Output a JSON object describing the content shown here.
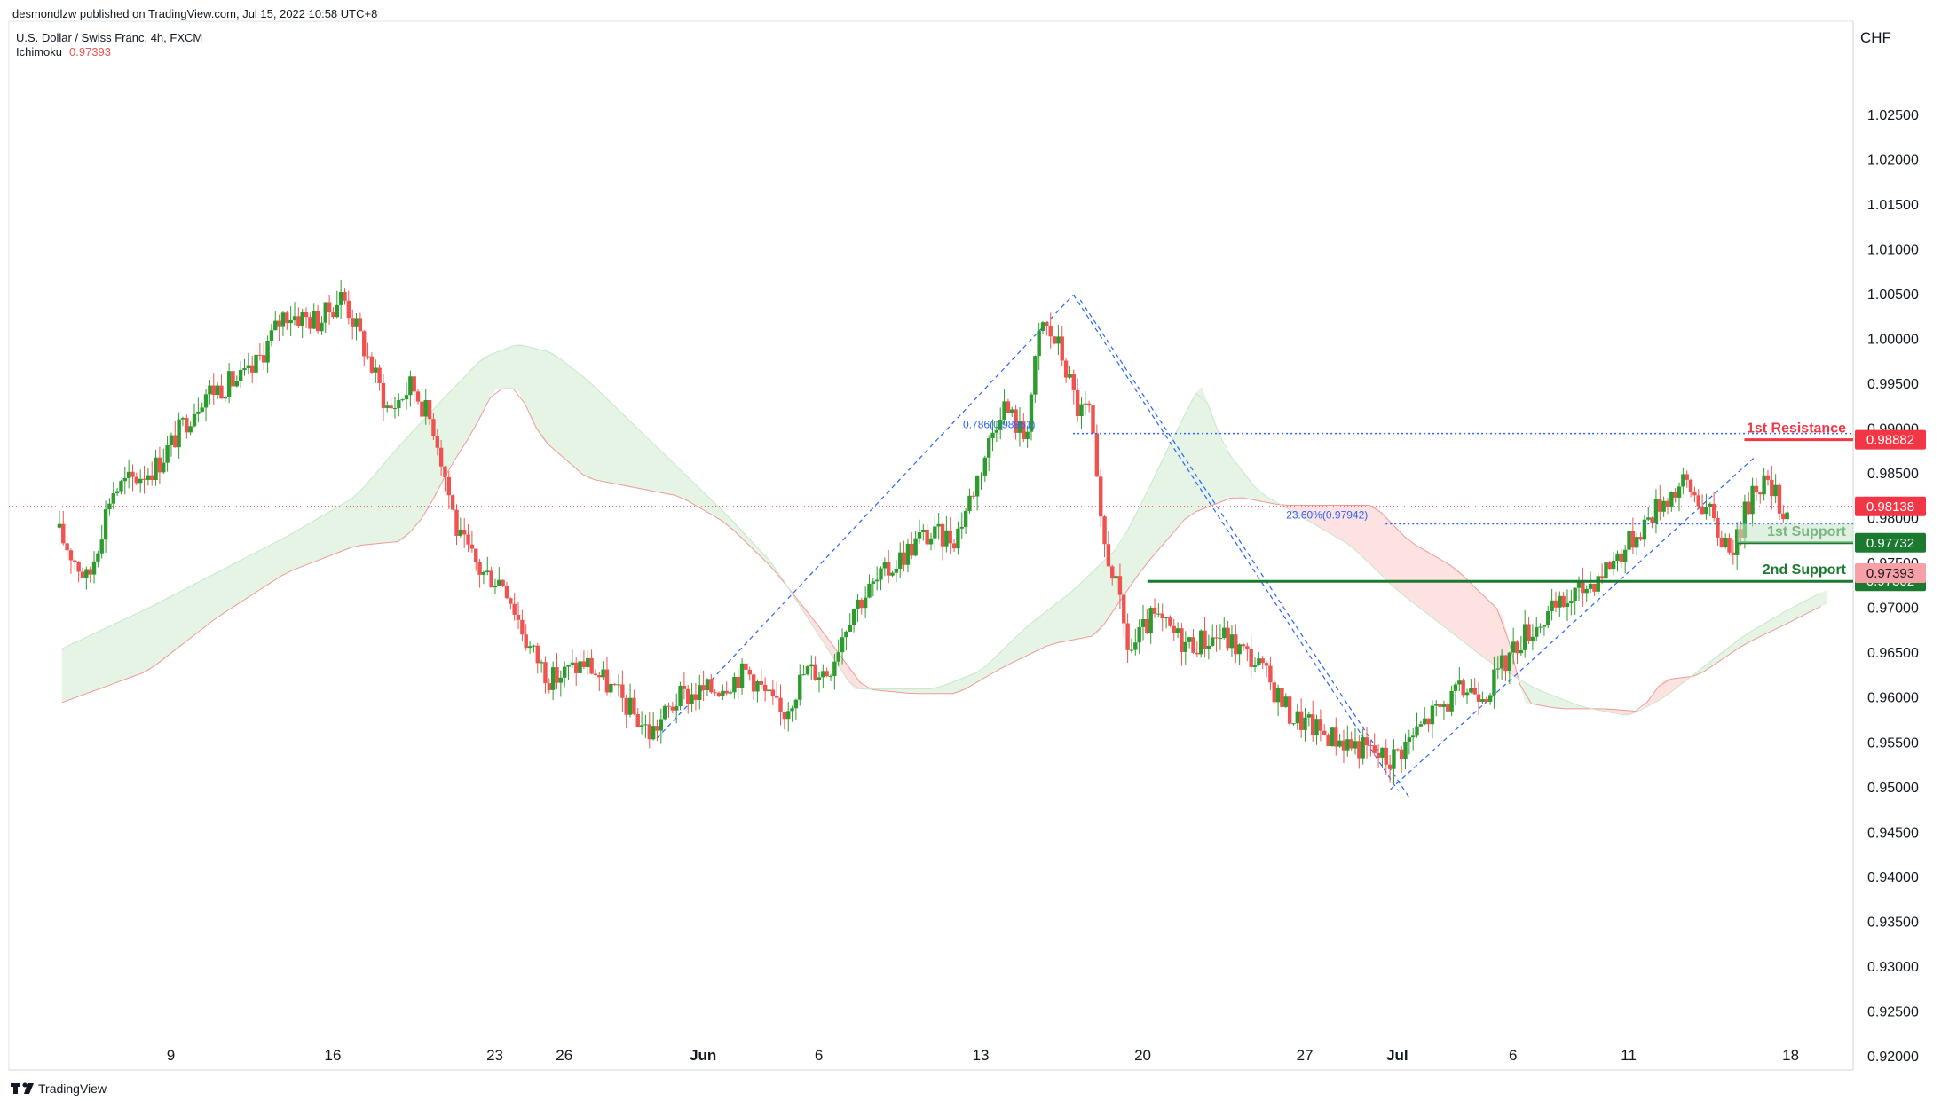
{
  "header": {
    "publisher": "desmondlzw published on TradingView.com, Jul 15, 2022 10:58 UTC+8",
    "symbol": "U.S. Dollar / Swiss Franc, 4h, FXCM",
    "indicator_name": "Ichimoku",
    "indicator_value": "0.97393"
  },
  "footer": {
    "brand": "TradingView"
  },
  "chart_data": {
    "type": "candlestick",
    "currency": "CHF",
    "ylim": [
      0.9185,
      1.0355
    ],
    "y_ticks": [
      "0.92000",
      "0.92500",
      "0.93000",
      "0.93500",
      "0.94000",
      "0.94500",
      "0.95000",
      "0.95500",
      "0.96000",
      "0.96500",
      "0.97000",
      "0.97500",
      "0.98000",
      "0.98500",
      "0.99000",
      "0.99500",
      "1.00000",
      "1.00500",
      "1.01000",
      "1.01500",
      "1.02000",
      "1.02500"
    ],
    "x_labels": [
      {
        "label": "9",
        "day": 9
      },
      {
        "label": "16",
        "day": 16
      },
      {
        "label": "23",
        "day": 23
      },
      {
        "label": "26",
        "day": 26
      },
      {
        "label": "Jun",
        "day": 32
      },
      {
        "label": "6",
        "day": 37
      },
      {
        "label": "13",
        "day": 44
      },
      {
        "label": "20",
        "day": 51
      },
      {
        "label": "27",
        "day": 58
      },
      {
        "label": "Jul",
        "day": 62
      },
      {
        "label": "6",
        "day": 67
      },
      {
        "label": "11",
        "day": 72
      },
      {
        "label": "18",
        "day": 79
      }
    ],
    "x_axis_note": "day index counted from May 1, 2022",
    "price_path": [
      [
        4.1,
        0.979
      ],
      [
        5.5,
        0.973
      ],
      [
        6.5,
        0.983
      ],
      [
        8.5,
        0.986
      ],
      [
        10.5,
        0.994
      ],
      [
        12.5,
        0.996
      ],
      [
        14.0,
        1.003
      ],
      [
        15.5,
        1.002
      ],
      [
        16.5,
        1.005
      ],
      [
        17.3,
        1.0
      ],
      [
        18.5,
        0.992
      ],
      [
        19.5,
        0.995
      ],
      [
        20.5,
        0.99
      ],
      [
        21.5,
        0.978
      ],
      [
        22.5,
        0.974
      ],
      [
        23.5,
        0.973
      ],
      [
        24.5,
        0.966
      ],
      [
        25.5,
        0.962
      ],
      [
        27.0,
        0.964
      ],
      [
        28.5,
        0.96
      ],
      [
        29.8,
        0.956
      ],
      [
        31.0,
        0.96
      ],
      [
        32.5,
        0.961
      ],
      [
        34.0,
        0.963
      ],
      [
        35.5,
        0.958
      ],
      [
        36.5,
        0.963
      ],
      [
        37.5,
        0.963
      ],
      [
        38.5,
        0.97
      ],
      [
        40.0,
        0.974
      ],
      [
        41.5,
        0.978
      ],
      [
        43.0,
        0.978
      ],
      [
        44.0,
        0.985
      ],
      [
        45.0,
        0.993
      ],
      [
        46.0,
        0.989
      ],
      [
        46.7,
        1.002
      ],
      [
        47.5,
        0.999
      ],
      [
        48.3,
        0.992
      ],
      [
        48.8,
        0.992
      ],
      [
        49.3,
        0.978
      ],
      [
        49.8,
        0.974
      ],
      [
        50.5,
        0.965
      ],
      [
        51.5,
        0.969
      ],
      [
        53.0,
        0.966
      ],
      [
        54.5,
        0.967
      ],
      [
        56.0,
        0.964
      ],
      [
        57.5,
        0.958
      ],
      [
        59.0,
        0.956
      ],
      [
        60.0,
        0.955
      ],
      [
        61.0,
        0.954
      ],
      [
        61.7,
        0.953
      ],
      [
        62.5,
        0.955
      ],
      [
        63.5,
        0.958
      ],
      [
        65.0,
        0.961
      ],
      [
        66.0,
        0.961
      ],
      [
        67.5,
        0.967
      ],
      [
        69.0,
        0.97
      ],
      [
        70.5,
        0.973
      ],
      [
        72.0,
        0.977
      ],
      [
        73.5,
        0.982
      ],
      [
        74.5,
        0.984
      ],
      [
        75.5,
        0.981
      ],
      [
        76.0,
        0.978
      ],
      [
        76.7,
        0.977
      ],
      [
        77.5,
        0.984
      ],
      [
        78.0,
        0.984
      ],
      [
        78.8,
        0.981
      ]
    ],
    "ichimoku": {
      "value": 0.97393,
      "span_a": [
        [
          4.3,
          0.9655
        ],
        [
          8,
          0.97
        ],
        [
          11,
          0.974
        ],
        [
          14,
          0.978
        ],
        [
          17,
          0.9825
        ],
        [
          19,
          0.9885
        ],
        [
          21,
          0.994
        ],
        [
          22.5,
          0.998
        ],
        [
          24,
          0.9995
        ],
        [
          25.5,
          0.9985
        ],
        [
          27,
          0.9955
        ],
        [
          29,
          0.9905
        ],
        [
          31,
          0.9855
        ],
        [
          33,
          0.9805
        ],
        [
          35,
          0.975
        ],
        [
          37,
          0.967
        ],
        [
          38.5,
          0.961
        ],
        [
          40,
          0.961
        ],
        [
          42,
          0.961
        ],
        [
          44,
          0.963
        ],
        [
          46,
          0.968
        ],
        [
          48,
          0.972
        ],
        [
          50,
          0.977
        ],
        [
          51,
          0.982
        ],
        [
          52.5,
          0.99
        ],
        [
          53.5,
          0.995
        ],
        [
          54.5,
          0.988
        ],
        [
          56,
          0.983
        ],
        [
          58,
          0.98
        ],
        [
          60,
          0.977
        ],
        [
          62,
          0.972
        ],
        [
          64,
          0.968
        ],
        [
          66,
          0.964
        ],
        [
          68,
          0.961
        ],
        [
          70,
          0.959
        ],
        [
          72,
          0.958
        ],
        [
          73.5,
          0.96
        ],
        [
          75,
          0.963
        ],
        [
          77,
          0.967
        ],
        [
          79,
          0.97
        ],
        [
          80.5,
          0.972
        ]
      ],
      "span_b": [
        [
          4.3,
          0.9595
        ],
        [
          8,
          0.963
        ],
        [
          11,
          0.969
        ],
        [
          14,
          0.974
        ],
        [
          17,
          0.977
        ],
        [
          19,
          0.9775
        ],
        [
          20,
          0.9805
        ],
        [
          21,
          0.9855
        ],
        [
          22,
          0.9895
        ],
        [
          23,
          0.9945
        ],
        [
          24,
          0.9945
        ],
        [
          25,
          0.989
        ],
        [
          27,
          0.9845
        ],
        [
          29,
          0.9835
        ],
        [
          31,
          0.9825
        ],
        [
          33,
          0.9795
        ],
        [
          35,
          0.9745
        ],
        [
          37,
          0.968
        ],
        [
          39,
          0.961
        ],
        [
          41,
          0.9605
        ],
        [
          43,
          0.9605
        ],
        [
          45,
          0.9635
        ],
        [
          47,
          0.966
        ],
        [
          49,
          0.967
        ],
        [
          51,
          0.9745
        ],
        [
          53,
          0.9805
        ],
        [
          55,
          0.9825
        ],
        [
          57,
          0.9815
        ],
        [
          59,
          0.9815
        ],
        [
          61,
          0.9815
        ],
        [
          62.5,
          0.9775
        ],
        [
          64.5,
          0.9745
        ],
        [
          66.5,
          0.9695
        ],
        [
          67.5,
          0.9595
        ],
        [
          69,
          0.9588
        ],
        [
          71,
          0.9588
        ],
        [
          72.5,
          0.9585
        ],
        [
          73.5,
          0.962
        ],
        [
          75,
          0.9625
        ],
        [
          77,
          0.966
        ],
        [
          79,
          0.9685
        ],
        [
          80.5,
          0.9705
        ]
      ]
    },
    "levels": [
      {
        "label": "1st Resistance",
        "price": "0.98882",
        "value": 0.98882,
        "color": "#f23645"
      },
      {
        "label": "1st Support",
        "price": "0.97732",
        "value": 0.97732,
        "color": "#1b7a2f"
      },
      {
        "label": "2nd Support",
        "price": "0.97302",
        "value": 0.97302,
        "color": "#1b7a2f"
      }
    ],
    "price_badges": [
      {
        "price": "0.98138",
        "value": 0.98138,
        "color": "#f23645"
      },
      {
        "price": "0.97393",
        "value": 0.97393,
        "color": "#f7a1a7"
      }
    ],
    "fib_labels": [
      {
        "text": "0.786(0.98951)",
        "value": 0.98951,
        "day": 44.0
      },
      {
        "text": "23.60%(0.97942)",
        "value": 0.97942,
        "day": 57.2
      }
    ],
    "trend_lines": [
      {
        "from": [
          30.0,
          0.9555
        ],
        "to": [
          48.0,
          1.005
        ]
      },
      {
        "from": [
          48.0,
          1.005
        ],
        "to": [
          62.0,
          0.9498
        ]
      },
      {
        "from": [
          61.7,
          0.9498
        ],
        "to": [
          77.5,
          0.987
        ]
      }
    ],
    "colors": {
      "up": "#26a69a",
      "up_body": "#2e9b2e",
      "down": "#ef5350",
      "cloud_bull": "#e6f4e6",
      "cloud_bear": "#fde2e2",
      "trend": "#2962ff"
    }
  }
}
